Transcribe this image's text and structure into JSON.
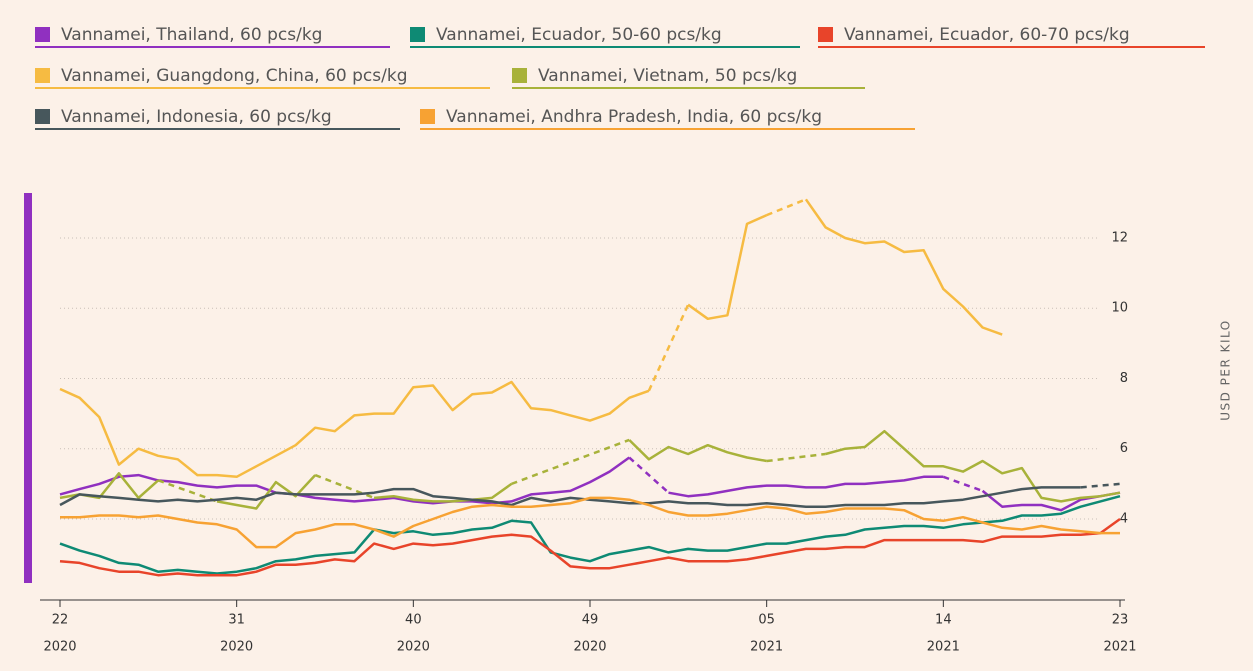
{
  "chart_data": {
    "type": "line",
    "y_label": "USD PER KILO",
    "ylim": [
      1.7,
      13.3
    ],
    "yticks": [
      4,
      6,
      8,
      10,
      12
    ],
    "grid": true,
    "gap_style": "dashed",
    "categories": [
      [
        "22",
        "2020"
      ],
      null,
      null,
      null,
      null,
      null,
      null,
      null,
      null,
      [
        "31",
        "2020"
      ],
      null,
      null,
      null,
      null,
      null,
      null,
      null,
      null,
      [
        "40",
        "2020"
      ],
      null,
      null,
      null,
      null,
      null,
      null,
      null,
      null,
      [
        "49",
        "2020"
      ],
      null,
      null,
      null,
      null,
      null,
      null,
      null,
      null,
      [
        "05",
        "2021"
      ],
      null,
      null,
      null,
      null,
      null,
      null,
      null,
      null,
      [
        "14",
        "2021"
      ],
      null,
      null,
      null,
      null,
      null,
      null,
      null,
      null,
      [
        "23",
        "2021"
      ]
    ],
    "series": [
      {
        "name": "Vannamei, Thailand, 60 pcs/kg",
        "color": "#9030c0",
        "values": [
          4.7,
          4.85,
          5.0,
          5.2,
          5.25,
          5.1,
          5.05,
          4.95,
          4.9,
          4.95,
          4.95,
          4.75,
          4.7,
          4.6,
          4.55,
          4.5,
          4.55,
          4.6,
          4.5,
          4.45,
          4.5,
          4.5,
          4.45,
          4.5,
          4.7,
          4.75,
          4.8,
          5.05,
          5.35,
          5.75,
          null,
          4.75,
          4.65,
          4.7,
          4.8,
          4.9,
          4.95,
          4.95,
          4.9,
          4.9,
          5.0,
          5.0,
          5.05,
          5.1,
          5.2,
          5.2,
          null,
          4.8,
          4.35,
          4.4,
          4.4,
          4.25,
          4.55,
          4.65,
          4.75
        ]
      },
      {
        "name": "Vannamei, Ecuador, 50-60 pcs/kg",
        "color": "#0e8a74",
        "values": [
          3.3,
          3.1,
          2.95,
          2.75,
          2.7,
          2.5,
          2.55,
          2.5,
          2.45,
          2.5,
          2.6,
          2.8,
          2.85,
          2.95,
          3.0,
          3.05,
          3.7,
          3.6,
          3.65,
          3.55,
          3.6,
          3.7,
          3.75,
          3.95,
          3.9,
          3.05,
          2.9,
          2.8,
          3.0,
          3.1,
          3.2,
          3.05,
          3.15,
          3.1,
          3.1,
          3.2,
          3.3,
          3.3,
          3.4,
          3.5,
          3.55,
          3.7,
          3.75,
          3.8,
          3.8,
          3.75,
          3.85,
          3.9,
          3.95,
          4.1,
          4.1,
          4.15,
          4.35,
          4.5,
          4.65
        ]
      },
      {
        "name": "Vannamei, Ecuador, 60-70 pcs/kg",
        "color": "#e8442a",
        "values": [
          2.8,
          2.75,
          2.6,
          2.5,
          2.5,
          2.4,
          2.45,
          2.4,
          2.4,
          2.4,
          2.5,
          2.7,
          2.7,
          2.75,
          2.85,
          2.8,
          3.3,
          3.15,
          3.3,
          3.25,
          3.3,
          3.4,
          3.5,
          3.55,
          3.5,
          3.1,
          2.65,
          2.6,
          2.6,
          2.7,
          2.8,
          2.9,
          2.8,
          2.8,
          2.8,
          2.85,
          2.95,
          3.05,
          3.15,
          3.15,
          3.2,
          3.2,
          3.4,
          3.4,
          3.4,
          3.4,
          3.4,
          3.35,
          3.5,
          3.5,
          3.5,
          3.55,
          3.55,
          3.6,
          4.0
        ]
      },
      {
        "name": "Vannamei, Guangdong, China, 60 pcs/kg",
        "color": "#f6bb42",
        "values": [
          7.7,
          7.45,
          6.9,
          5.55,
          6.0,
          5.8,
          5.7,
          5.25,
          5.25,
          5.2,
          5.5,
          5.8,
          6.1,
          6.6,
          6.5,
          6.95,
          7.0,
          7.0,
          7.75,
          7.8,
          7.1,
          7.55,
          7.6,
          7.9,
          7.15,
          7.1,
          6.95,
          6.8,
          7.0,
          7.45,
          7.65,
          null,
          10.1,
          9.7,
          9.8,
          12.4,
          12.65,
          null,
          13.1,
          12.3,
          12.0,
          11.85,
          11.9,
          11.6,
          11.65,
          10.55,
          10.05,
          9.45,
          9.25,
          null,
          null,
          null,
          null,
          null,
          null
        ]
      },
      {
        "name": "Vannamei, Vietnam, 50 pcs/kg",
        "color": "#a8b23a",
        "values": [
          4.6,
          4.7,
          4.6,
          5.3,
          4.6,
          5.1,
          null,
          null,
          4.5,
          4.4,
          4.3,
          5.05,
          4.65,
          5.25,
          null,
          null,
          4.6,
          4.65,
          4.55,
          4.5,
          4.5,
          4.55,
          4.6,
          5.0,
          null,
          null,
          null,
          null,
          null,
          6.25,
          5.7,
          6.05,
          5.85,
          6.1,
          5.9,
          5.75,
          5.65,
          null,
          null,
          5.85,
          6.0,
          6.05,
          6.5,
          6.0,
          5.5,
          5.5,
          5.35,
          5.65,
          5.3,
          5.45,
          4.6,
          4.5,
          4.6,
          4.65,
          4.75
        ]
      },
      {
        "name": "Vannamei, Indonesia, 60 pcs/kg",
        "color": "#47575c",
        "values": [
          4.4,
          4.7,
          4.65,
          4.6,
          4.55,
          4.5,
          4.55,
          4.5,
          4.55,
          4.6,
          4.55,
          4.75,
          4.7,
          4.7,
          4.7,
          4.7,
          4.75,
          4.85,
          4.85,
          4.65,
          4.6,
          4.55,
          4.5,
          4.4,
          4.6,
          4.5,
          4.6,
          4.55,
          4.5,
          4.45,
          4.45,
          4.5,
          4.45,
          4.45,
          4.4,
          4.4,
          4.45,
          4.4,
          4.35,
          4.35,
          4.4,
          4.4,
          4.4,
          4.45,
          4.45,
          4.5,
          4.55,
          4.65,
          4.75,
          4.85,
          4.9,
          4.9,
          4.9,
          null,
          5.0
        ]
      },
      {
        "name": "Vannamei, Andhra Pradesh, India, 60 pcs/kg",
        "color": "#f7a233",
        "values": [
          4.05,
          4.05,
          4.1,
          4.1,
          4.05,
          4.1,
          4.0,
          3.9,
          3.85,
          3.7,
          3.2,
          3.2,
          3.6,
          3.7,
          3.85,
          3.85,
          3.7,
          3.5,
          3.8,
          4.0,
          4.2,
          4.35,
          4.4,
          4.35,
          4.35,
          4.4,
          4.45,
          4.6,
          4.6,
          4.55,
          4.4,
          4.2,
          4.1,
          4.1,
          4.15,
          4.25,
          4.35,
          4.3,
          4.15,
          4.2,
          4.3,
          4.3,
          4.3,
          4.25,
          4.0,
          3.95,
          4.05,
          3.9,
          3.75,
          3.7,
          3.8,
          3.7,
          3.65,
          3.6,
          3.6
        ]
      }
    ]
  }
}
